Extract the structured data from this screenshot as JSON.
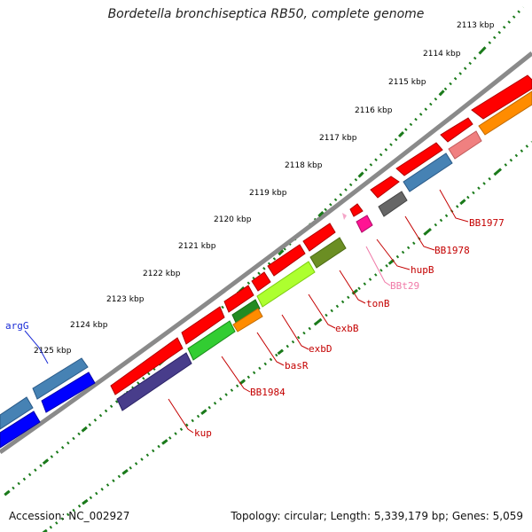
{
  "title": "Bordetella bronchiseptica RB50, complete genome",
  "footer": {
    "accession": "Accession: NC_002927",
    "summary": "Topology: circular; Length: 5,339,179 bp; Genes: 5,059"
  },
  "ruler": {
    "ticks": [
      "2113 kbp",
      "2114 kbp",
      "2115 kbp",
      "2116 kbp",
      "2117 kbp",
      "2118 kbp",
      "2119 kbp",
      "2120 kbp",
      "2121 kbp",
      "2122 kbp",
      "2123 kbp",
      "2124 kbp",
      "2125 kbp"
    ]
  },
  "labels": [
    {
      "name": "argG",
      "color": "#1a2bd6"
    },
    {
      "name": "BB1977",
      "color": "#c40000"
    },
    {
      "name": "BB1978",
      "color": "#c40000"
    },
    {
      "name": "hupB",
      "color": "#c40000"
    },
    {
      "name": "BBt29",
      "color": "#f07aa8"
    },
    {
      "name": "tonB",
      "color": "#c40000"
    },
    {
      "name": "exbB",
      "color": "#c40000"
    },
    {
      "name": "exbD",
      "color": "#c40000"
    },
    {
      "name": "basR",
      "color": "#c40000"
    },
    {
      "name": "BB1984",
      "color": "#c40000"
    },
    {
      "name": "kup",
      "color": "#c40000"
    }
  ],
  "colors": {
    "backbone": "#8a8a8a",
    "cds": "#ff0000",
    "tick": "#1a7a1a"
  }
}
